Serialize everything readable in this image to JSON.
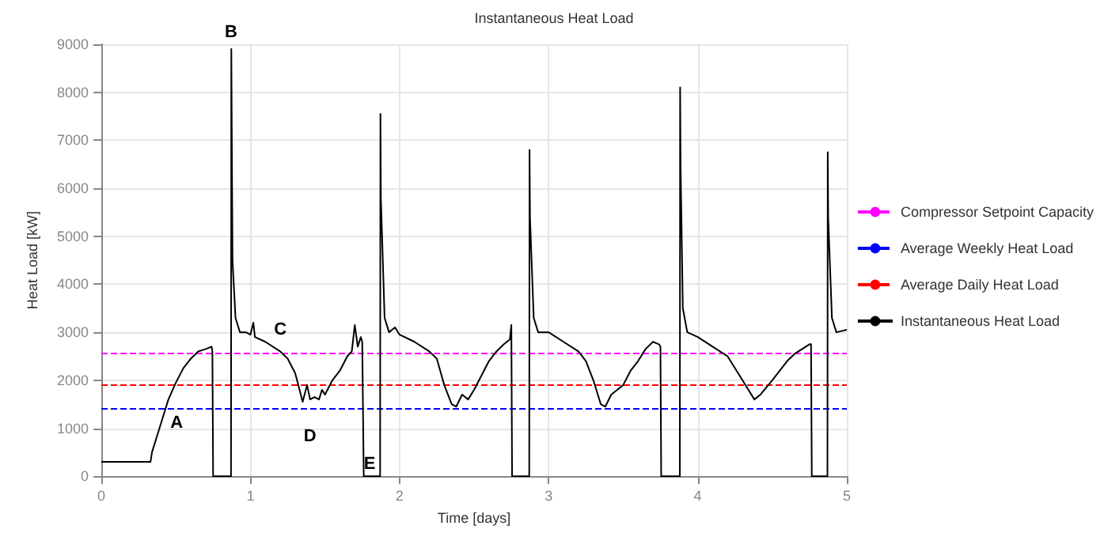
{
  "chart_data": {
    "type": "line",
    "title": "Instantaneous Heat Load",
    "xlabel": "Time [days]",
    "ylabel": "Heat Load [kW]",
    "xlim": [
      0,
      5
    ],
    "xticks": [
      0,
      1,
      2,
      3,
      4,
      5
    ],
    "ylim": [
      0,
      9000
    ],
    "yticks": [
      0,
      1000,
      2000,
      3000,
      4000,
      5000,
      6000,
      7000,
      8000,
      9000
    ],
    "grid": true,
    "legend": "right",
    "marker": "none",
    "line_style": "solid",
    "series": [
      {
        "name": "Instantaneous Heat Load",
        "color": "#000000",
        "x": [
          0,
          0.33,
          0.34,
          0.4,
          0.45,
          0.5,
          0.55,
          0.6,
          0.65,
          0.7,
          0.74,
          0.745,
          0.75,
          0.87,
          0.872,
          0.875,
          0.88,
          0.9,
          0.93,
          0.97,
          1.0,
          1.02,
          1.03,
          1.1,
          1.2,
          1.25,
          1.3,
          1.33,
          1.35,
          1.38,
          1.4,
          1.43,
          1.46,
          1.48,
          1.5,
          1.55,
          1.6,
          1.65,
          1.68,
          1.7,
          1.72,
          1.74,
          1.75,
          1.76,
          1.87,
          1.872,
          1.875,
          1.9,
          1.93,
          1.97,
          2.0,
          2.1,
          2.2,
          2.25,
          2.3,
          2.35,
          2.38,
          2.42,
          2.46,
          2.5,
          2.55,
          2.6,
          2.65,
          2.7,
          2.74,
          2.75,
          2.755,
          2.87,
          2.872,
          2.875,
          2.9,
          2.93,
          3.0,
          3.1,
          3.2,
          3.25,
          3.3,
          3.35,
          3.38,
          3.42,
          3.46,
          3.5,
          3.55,
          3.6,
          3.65,
          3.7,
          3.74,
          3.75,
          3.755,
          3.88,
          3.882,
          3.885,
          3.9,
          3.93,
          4.0,
          4.1,
          4.2,
          4.3,
          4.38,
          4.42,
          4.5,
          4.6,
          4.65,
          4.7,
          4.75,
          4.76,
          4.765,
          4.87,
          4.872,
          4.875,
          4.9,
          4.93,
          5.0
        ],
        "values": [
          300,
          300,
          500,
          1100,
          1600,
          1950,
          2250,
          2450,
          2600,
          2650,
          2700,
          2600,
          0,
          0,
          8900,
          7200,
          4500,
          3300,
          3000,
          3000,
          2950,
          3200,
          2900,
          2800,
          2600,
          2450,
          2150,
          1800,
          1550,
          1900,
          1600,
          1650,
          1600,
          1800,
          1700,
          2000,
          2200,
          2500,
          2600,
          3150,
          2700,
          2900,
          2800,
          0,
          0,
          7550,
          5800,
          3300,
          3000,
          3100,
          2950,
          2800,
          2600,
          2450,
          1900,
          1500,
          1450,
          1700,
          1600,
          1800,
          2100,
          2400,
          2600,
          2750,
          2850,
          3150,
          0,
          0,
          6800,
          5400,
          3300,
          3000,
          3000,
          2800,
          2600,
          2400,
          2000,
          1500,
          1450,
          1700,
          1800,
          1900,
          2200,
          2400,
          2650,
          2800,
          2750,
          2700,
          0,
          0,
          8100,
          6500,
          3500,
          3000,
          2900,
          2700,
          2500,
          2000,
          1600,
          1700,
          2000,
          2400,
          2550,
          2650,
          2750,
          2750,
          0,
          0,
          6750,
          5400,
          3300,
          3000,
          3050
        ]
      }
    ],
    "ref_lines": [
      {
        "axis": "y",
        "value": 2550,
        "label": "Compressor Setpoint Capacity",
        "color": "#ff00ff",
        "line_style": "dashed"
      },
      {
        "axis": "y",
        "value": 1400,
        "label": "Average Weekly Heat Load",
        "color": "#0000ff",
        "line_style": "dashed"
      },
      {
        "axis": "y",
        "value": 1900,
        "label": "Average Daily Heat Load",
        "color": "#ff0000",
        "line_style": "dashed"
      }
    ],
    "annotations": [
      {
        "text": "A",
        "x": 0.4,
        "y": 1100
      },
      {
        "text": "B",
        "x": 0.87,
        "y": 8900
      },
      {
        "text": "C",
        "x": 1.2,
        "y": 2600
      },
      {
        "text": "D",
        "x": 1.4,
        "y": 1600
      },
      {
        "text": "E",
        "x": 1.8,
        "y": 0
      }
    ]
  }
}
